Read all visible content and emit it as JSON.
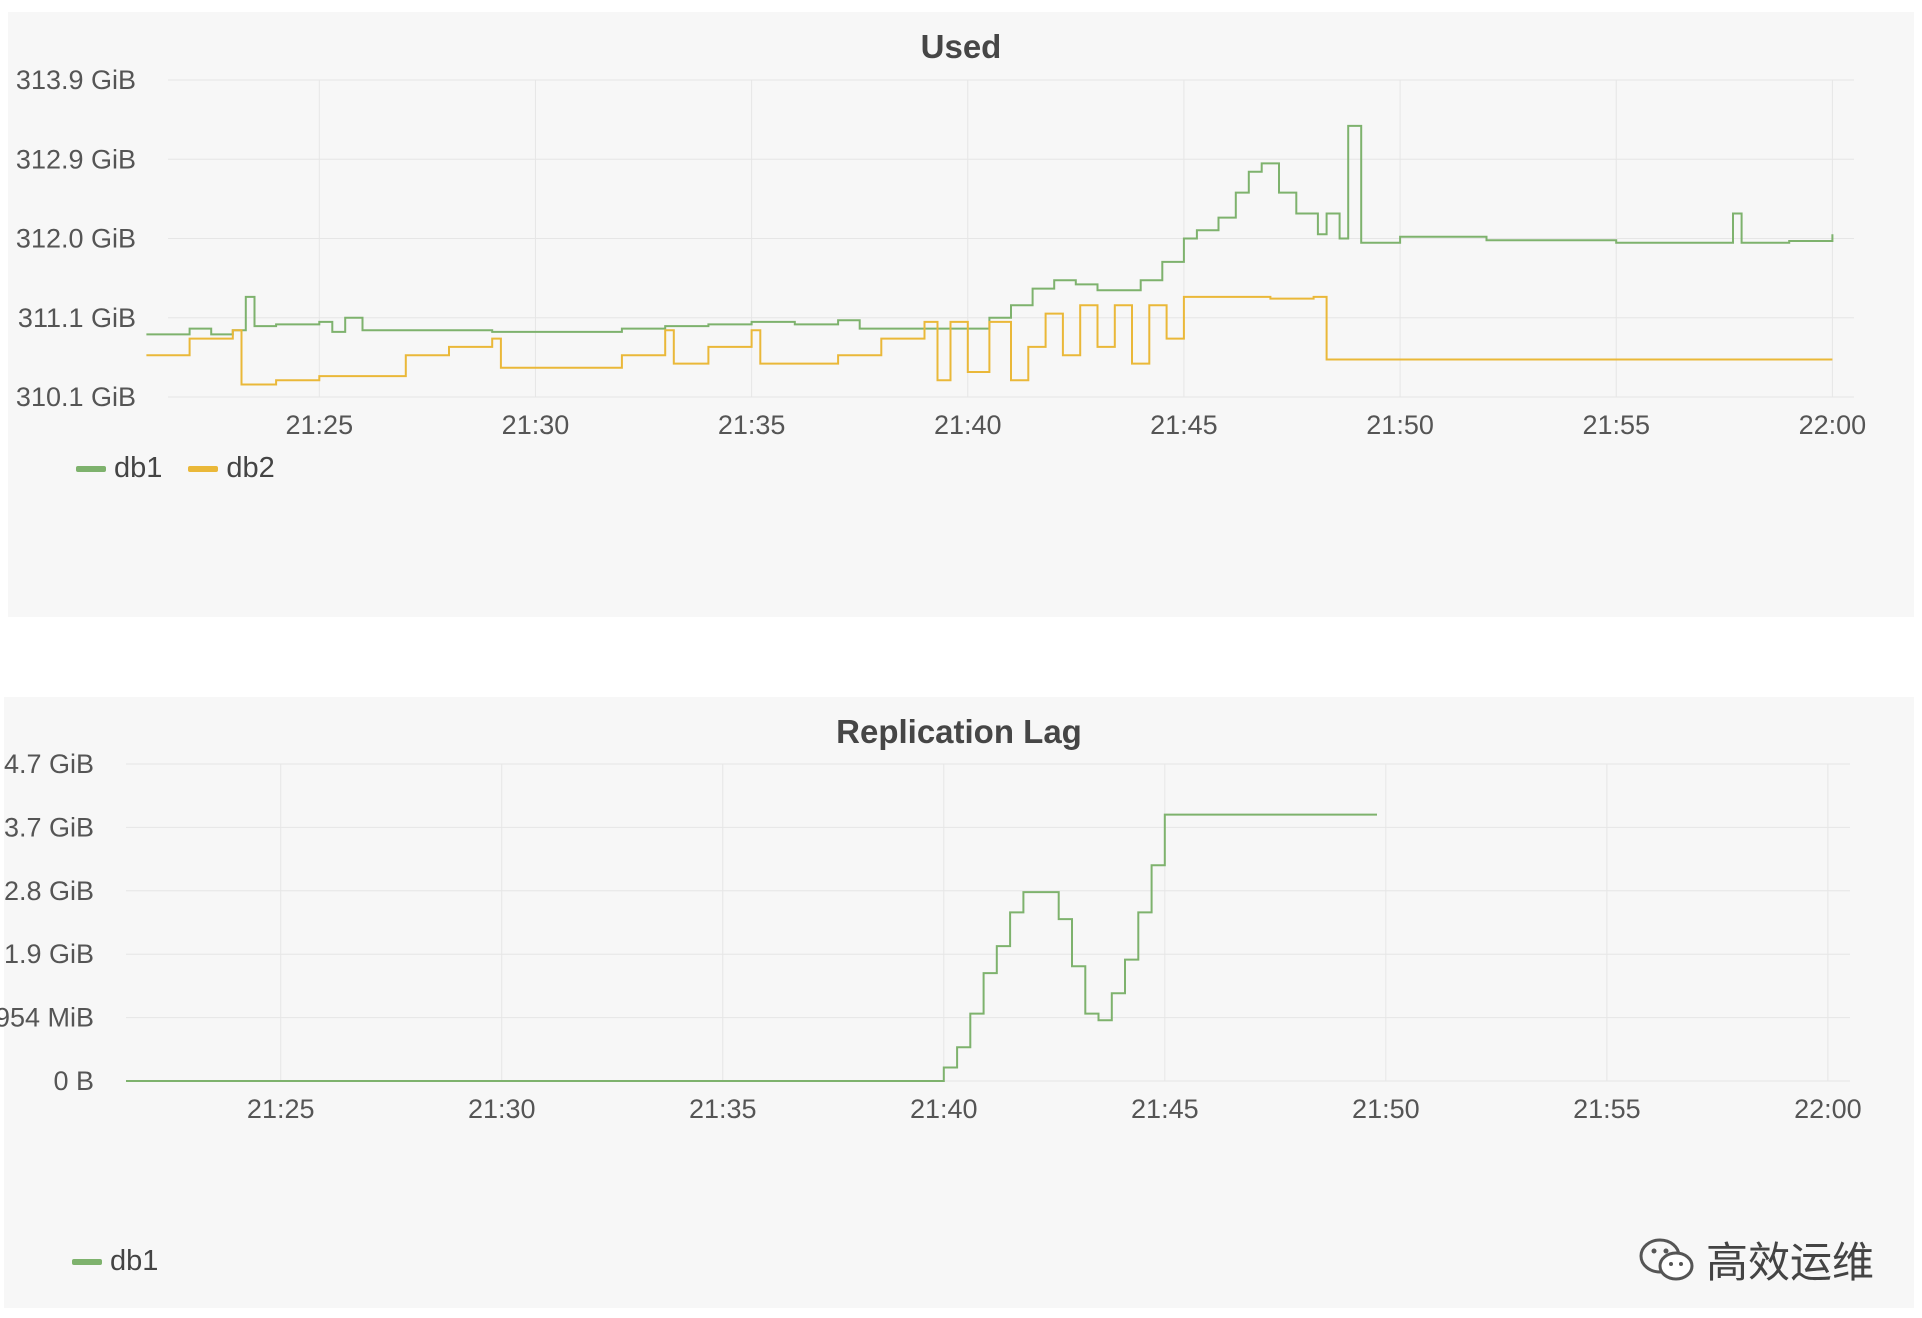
{
  "chart_data": [
    {
      "type": "line",
      "title": "Used",
      "xlabel": "",
      "ylabel": "",
      "x_ticks": [
        "21:25",
        "21:30",
        "21:35",
        "21:40",
        "21:45",
        "21:50",
        "21:55",
        "22:00"
      ],
      "y_ticks": [
        "313.9 GiB",
        "312.9 GiB",
        "312.0 GiB",
        "311.1 GiB",
        "310.1 GiB"
      ],
      "x_range_minutes": [
        1281.5,
        1320.5
      ],
      "ylim": [
        310.1,
        313.9
      ],
      "grid": true,
      "legend_placement": "bottom-left",
      "series": [
        {
          "name": "db1",
          "color": "#7eb26d",
          "points": [
            [
              "21:21",
              310.85
            ],
            [
              "21:22",
              310.92
            ],
            [
              "21:22.5",
              310.85
            ],
            [
              "21:23",
              310.9
            ],
            [
              "21:23.3",
              311.3
            ],
            [
              "21:23.5",
              310.95
            ],
            [
              "21:24",
              310.97
            ],
            [
              "21:25",
              311.0
            ],
            [
              "21:25.3",
              310.88
            ],
            [
              "21:25.6",
              311.05
            ],
            [
              "21:26",
              310.9
            ],
            [
              "21:28",
              310.9
            ],
            [
              "21:29",
              310.88
            ],
            [
              "21:32",
              310.92
            ],
            [
              "21:33",
              310.95
            ],
            [
              "21:34",
              310.97
            ],
            [
              "21:35",
              311.0
            ],
            [
              "21:36",
              310.97
            ],
            [
              "21:37",
              311.02
            ],
            [
              "21:37.5",
              310.92
            ],
            [
              "21:40",
              310.92
            ],
            [
              "21:40.5",
              311.05
            ],
            [
              "21:41",
              311.2
            ],
            [
              "21:41.5",
              311.4
            ],
            [
              "21:42",
              311.5
            ],
            [
              "21:42.5",
              311.45
            ],
            [
              "21:43",
              311.38
            ],
            [
              "21:44",
              311.5
            ],
            [
              "21:44.5",
              311.72
            ],
            [
              "21:45",
              312.0
            ],
            [
              "21:45.3",
              312.1
            ],
            [
              "21:45.8",
              312.25
            ],
            [
              "21:46.2",
              312.55
            ],
            [
              "21:46.5",
              312.8
            ],
            [
              "21:46.8",
              312.9
            ],
            [
              "21:47.2",
              312.55
            ],
            [
              "21:47.6",
              312.3
            ],
            [
              "21:48.1",
              312.05
            ],
            [
              "21:48.3",
              312.3
            ],
            [
              "21:48.6",
              312.0
            ],
            [
              "21:48.8",
              313.35
            ],
            [
              "21:49.1",
              311.95
            ],
            [
              "21:50",
              312.02
            ],
            [
              "21:52",
              311.98
            ],
            [
              "21:55",
              311.95
            ],
            [
              "21:57.5",
              311.95
            ],
            [
              "21:57.7",
              312.3
            ],
            [
              "21:57.9",
              311.95
            ],
            [
              "21:59",
              311.97
            ],
            [
              "22:00",
              312.05
            ]
          ]
        },
        {
          "name": "db2",
          "color": "#eab839",
          "points": [
            [
              "21:21",
              310.6
            ],
            [
              "21:22",
              310.8
            ],
            [
              "21:23",
              310.9
            ],
            [
              "21:23.2",
              310.25
            ],
            [
              "21:24",
              310.3
            ],
            [
              "21:25",
              310.35
            ],
            [
              "21:27",
              310.6
            ],
            [
              "21:28",
              310.7
            ],
            [
              "21:29",
              310.8
            ],
            [
              "21:29.2",
              310.45
            ],
            [
              "21:31",
              310.45
            ],
            [
              "21:32",
              310.6
            ],
            [
              "21:33",
              310.9
            ],
            [
              "21:33.2",
              310.5
            ],
            [
              "21:34",
              310.7
            ],
            [
              "21:35",
              310.9
            ],
            [
              "21:35.2",
              310.5
            ],
            [
              "21:36",
              310.5
            ],
            [
              "21:37",
              310.6
            ],
            [
              "21:38",
              310.8
            ],
            [
              "21:39",
              311.0
            ],
            [
              "21:39.3",
              310.3
            ],
            [
              "21:39.6",
              311.0
            ],
            [
              "21:40",
              310.4
            ],
            [
              "21:40.5",
              311.0
            ],
            [
              "21:41",
              310.3
            ],
            [
              "21:41.4",
              310.7
            ],
            [
              "21:41.8",
              311.1
            ],
            [
              "21:42.2",
              310.6
            ],
            [
              "21:42.6",
              311.2
            ],
            [
              "21:43",
              310.7
            ],
            [
              "21:43.4",
              311.2
            ],
            [
              "21:43.8",
              310.5
            ],
            [
              "21:44.2",
              311.2
            ],
            [
              "21:44.6",
              310.8
            ],
            [
              "21:45",
              311.3
            ],
            [
              "21:46",
              311.3
            ],
            [
              "21:47",
              311.28
            ],
            [
              "21:48",
              311.3
            ],
            [
              "21:48.3",
              310.55
            ],
            [
              "21:50",
              310.55
            ],
            [
              "21:55",
              310.55
            ],
            [
              "22:00",
              310.55
            ]
          ]
        }
      ]
    },
    {
      "type": "line",
      "title": "Replication Lag",
      "xlabel": "",
      "ylabel": "",
      "x_ticks": [
        "21:25",
        "21:30",
        "21:35",
        "21:40",
        "21:45",
        "21:50",
        "21:55",
        "22:00"
      ],
      "y_ticks": [
        "4.7 GiB",
        "3.7 GiB",
        "2.8 GiB",
        "1.9 GiB",
        "954 MiB",
        "0 B"
      ],
      "x_range_minutes": [
        1281.5,
        1320.5
      ],
      "ylim": [
        0,
        4.7
      ],
      "grid": true,
      "legend_placement": "bottom-left",
      "series": [
        {
          "name": "db1",
          "color": "#7eb26d",
          "points": [
            [
              "21:21.5",
              0
            ],
            [
              "21:39.7",
              0
            ],
            [
              "21:40",
              0.2
            ],
            [
              "21:40.3",
              0.5
            ],
            [
              "21:40.6",
              1.0
            ],
            [
              "21:40.9",
              1.6
            ],
            [
              "21:41.2",
              2.0
            ],
            [
              "21:41.5",
              2.5
            ],
            [
              "21:41.8",
              2.8
            ],
            [
              "21:42.3",
              2.8
            ],
            [
              "21:42.6",
              2.4
            ],
            [
              "21:42.9",
              1.7
            ],
            [
              "21:43.2",
              1.0
            ],
            [
              "21:43.5",
              0.9
            ],
            [
              "21:43.8",
              1.3
            ],
            [
              "21:44.1",
              1.8
            ],
            [
              "21:44.4",
              2.5
            ],
            [
              "21:44.7",
              3.2
            ],
            [
              "21:45",
              3.95
            ],
            [
              "21:49.8",
              3.95
            ]
          ]
        }
      ]
    }
  ],
  "legends": [
    [
      {
        "label": "db1",
        "color": "#7eb26d"
      },
      {
        "label": "db2",
        "color": "#eab839"
      }
    ],
    [
      {
        "label": "db1",
        "color": "#7eb26d"
      }
    ]
  ],
  "watermark": {
    "text": "高效运维",
    "icon": "wechat-icon"
  }
}
